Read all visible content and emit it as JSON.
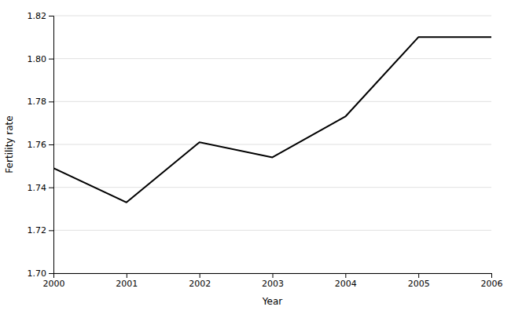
{
  "chart_data": {
    "type": "line",
    "x": [
      2000,
      2001,
      2002,
      2003,
      2004,
      2005,
      2006
    ],
    "values": [
      1.749,
      1.733,
      1.761,
      1.754,
      1.773,
      1.81,
      1.81
    ],
    "color": "#000000",
    "xlabel": "Year",
    "ylabel": "Fertility rate",
    "xlim": [
      2000,
      2006
    ],
    "xticks": [
      2000,
      2001,
      2002,
      2003,
      2004,
      2005,
      2006
    ],
    "ylim": [
      1.7,
      1.82
    ],
    "yticks": [
      {
        "value": 1.7,
        "label": "1.70"
      },
      1.72,
      1.74,
      1.76,
      1.78,
      {
        "value": 1.8,
        "label": "1.80"
      },
      1.82
    ],
    "grid": true
  }
}
